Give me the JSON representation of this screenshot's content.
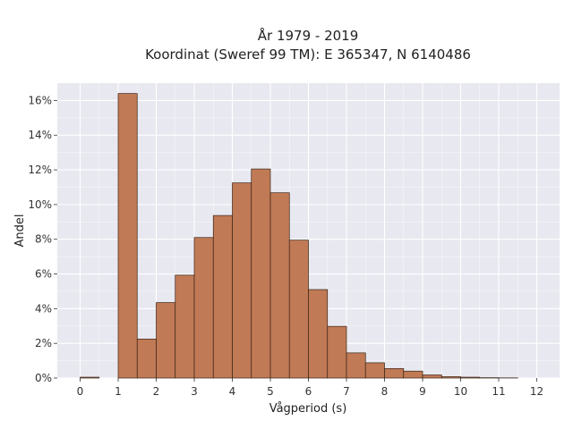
{
  "chart_data": {
    "type": "bar",
    "title": [
      "År 1979 - 2019",
      "Koordinat (Sweref 99 TM): E 365347, N 6140486"
    ],
    "xlabel": "Vågperiod (s)",
    "ylabel": "Andel",
    "xlim": [
      -0.6,
      12.6
    ],
    "ylim": [
      0,
      0.17
    ],
    "x_ticks": [
      0,
      1,
      2,
      3,
      4,
      5,
      6,
      7,
      8,
      9,
      10,
      11,
      12
    ],
    "x_tick_labels": [
      "0",
      "1",
      "2",
      "3",
      "4",
      "5",
      "6",
      "7",
      "8",
      "9",
      "10",
      "11",
      "12"
    ],
    "y_ticks": [
      0,
      0.02,
      0.04,
      0.06,
      0.08,
      0.1,
      0.12,
      0.14,
      0.16
    ],
    "y_tick_labels": [
      "0%",
      "2%",
      "4%",
      "6%",
      "8%",
      "10%",
      "12%",
      "14%",
      "16%"
    ],
    "bin_width": 0.5,
    "bins": [
      {
        "start": 0.0,
        "value": 0.0005
      },
      {
        "start": 0.5,
        "value": 0.0
      },
      {
        "start": 1.0,
        "value": 0.164
      },
      {
        "start": 1.5,
        "value": 0.0225
      },
      {
        "start": 2.0,
        "value": 0.0435
      },
      {
        "start": 2.5,
        "value": 0.0593
      },
      {
        "start": 3.0,
        "value": 0.081
      },
      {
        "start": 3.5,
        "value": 0.0937
      },
      {
        "start": 4.0,
        "value": 0.1125
      },
      {
        "start": 4.5,
        "value": 0.1205
      },
      {
        "start": 5.0,
        "value": 0.1068
      },
      {
        "start": 5.5,
        "value": 0.0795
      },
      {
        "start": 6.0,
        "value": 0.051
      },
      {
        "start": 6.5,
        "value": 0.0298
      },
      {
        "start": 7.0,
        "value": 0.0145
      },
      {
        "start": 7.5,
        "value": 0.0088
      },
      {
        "start": 8.0,
        "value": 0.0055
      },
      {
        "start": 8.5,
        "value": 0.004
      },
      {
        "start": 9.0,
        "value": 0.0018
      },
      {
        "start": 9.5,
        "value": 0.0008
      },
      {
        "start": 10.0,
        "value": 0.0005
      },
      {
        "start": 10.5,
        "value": 0.0002
      },
      {
        "start": 11.0,
        "value": 0.0001
      }
    ],
    "grid": true,
    "colors": {
      "bar_fill": "#c07a55",
      "bar_edge": "#3a2418",
      "plot_background": "#e8e8f0",
      "grid": "#ffffff"
    }
  }
}
